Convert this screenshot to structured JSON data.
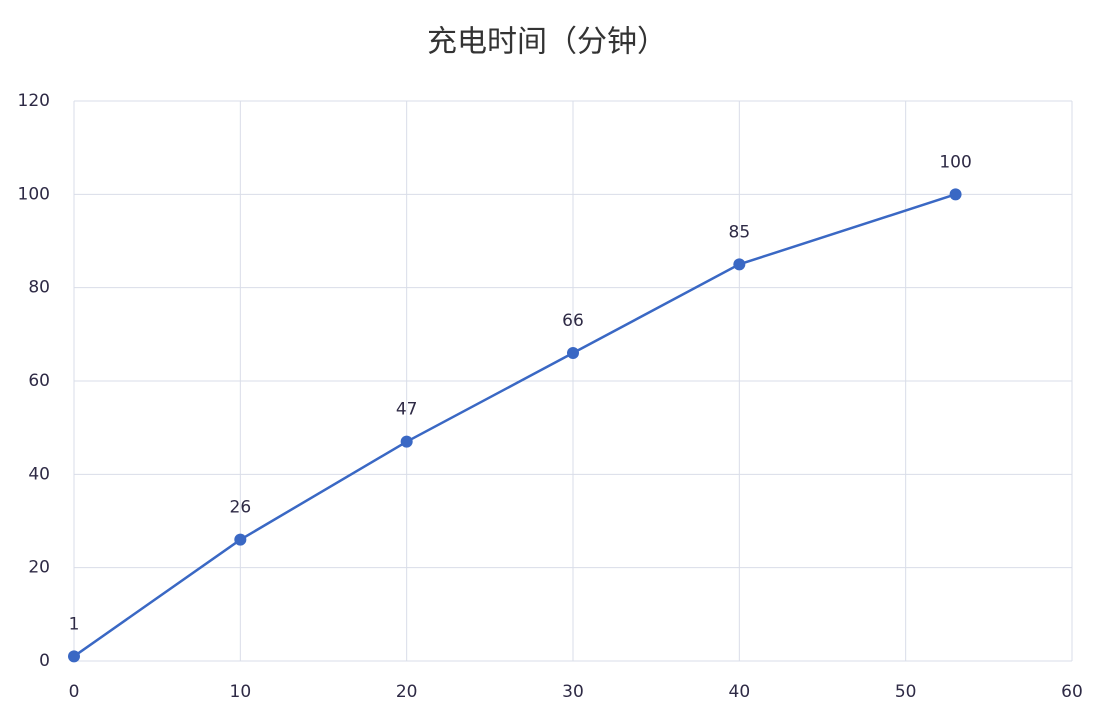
{
  "chart_data": {
    "type": "line",
    "title": "充电时间（分钟）",
    "x": [
      0,
      10,
      20,
      30,
      40,
      53
    ],
    "values": [
      1,
      26,
      47,
      66,
      85,
      100
    ],
    "color": "#3a68c4",
    "xlim": [
      0,
      60
    ],
    "xticks": [
      0,
      10,
      20,
      30,
      40,
      50,
      60
    ],
    "ylim": [
      0,
      120
    ],
    "yticks": [
      0,
      20,
      40,
      60,
      80,
      100,
      120
    ],
    "grid": true
  }
}
